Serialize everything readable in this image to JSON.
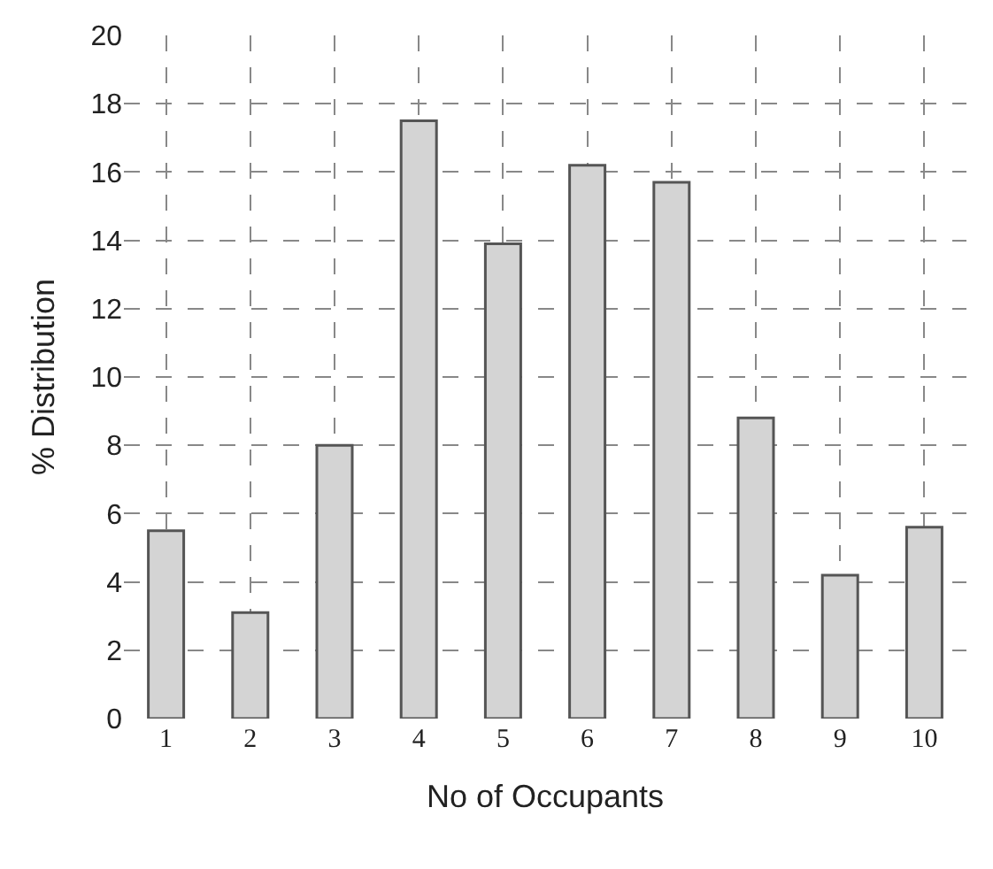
{
  "chart_data": {
    "type": "bar",
    "xlabel": "No of Occupants",
    "ylabel": "% Distribution",
    "categories": [
      "1",
      "2",
      "3",
      "4",
      "5",
      "6",
      "7",
      "8",
      "9",
      "10"
    ],
    "values": [
      5.5,
      3.1,
      8.0,
      17.5,
      13.9,
      16.2,
      15.7,
      8.8,
      4.2,
      5.6
    ],
    "color": "#d4d4d4",
    "ylim": [
      0,
      20
    ],
    "yticks": [
      0,
      2,
      4,
      6,
      8,
      10,
      12,
      14,
      16,
      18,
      20
    ],
    "grid": true
  }
}
